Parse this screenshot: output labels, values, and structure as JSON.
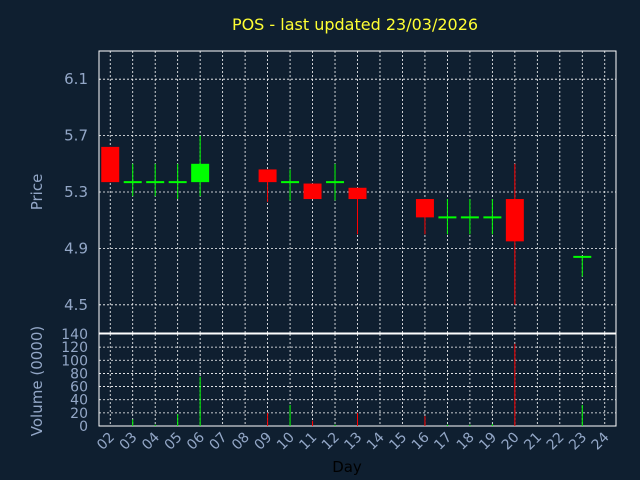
{
  "chart_data": {
    "type": "candlestick",
    "title": "POS - last updated 23/03/2026",
    "xlabel": "Day",
    "price_panel": {
      "ylabel": "Price",
      "ylim": [
        4.3,
        6.3
      ],
      "yticks": [
        "4.5",
        "4.9",
        "5.3",
        "5.7",
        "6.1"
      ],
      "grid": true
    },
    "volume_panel": {
      "ylabel": "Volume (0000)",
      "ylim": [
        0,
        140
      ],
      "yticks": [
        "0",
        "20",
        "40",
        "60",
        "80",
        "100",
        "120",
        "140"
      ],
      "grid": true
    },
    "x_tick_labels": [
      "02",
      "03",
      "04",
      "05",
      "06",
      "07",
      "08",
      "09",
      "10",
      "11",
      "12",
      "13",
      "14",
      "15",
      "16",
      "17",
      "18",
      "19",
      "20",
      "21",
      "22",
      "23",
      "24"
    ],
    "candles": [
      {
        "day": "02",
        "open": 5.62,
        "close": 5.37,
        "high": 5.62,
        "low": 5.37,
        "volume": 0
      },
      {
        "day": "03",
        "open": 5.37,
        "close": 5.37,
        "high": 5.5,
        "low": 5.27,
        "volume": 10
      },
      {
        "day": "04",
        "open": 5.37,
        "close": 5.37,
        "high": 5.5,
        "low": 5.27,
        "volume": 2
      },
      {
        "day": "05",
        "open": 5.37,
        "close": 5.37,
        "high": 5.5,
        "low": 5.25,
        "volume": 18
      },
      {
        "day": "06",
        "open": 5.37,
        "close": 5.5,
        "high": 5.7,
        "low": 5.27,
        "volume": 75
      },
      {
        "day": "09",
        "open": 5.46,
        "close": 5.37,
        "high": 5.46,
        "low": 5.23,
        "volume": 20
      },
      {
        "day": "10",
        "open": 5.37,
        "close": 5.37,
        "high": 5.46,
        "low": 5.24,
        "volume": 32
      },
      {
        "day": "11",
        "open": 5.36,
        "close": 5.25,
        "high": 5.36,
        "low": 5.25,
        "volume": 8
      },
      {
        "day": "12",
        "open": 5.37,
        "close": 5.37,
        "high": 5.5,
        "low": 5.24,
        "volume": 2
      },
      {
        "day": "13",
        "open": 5.33,
        "close": 5.25,
        "high": 5.33,
        "low": 5.0,
        "volume": 20
      },
      {
        "day": "16",
        "open": 5.25,
        "close": 5.12,
        "high": 5.25,
        "low": 5.0,
        "volume": 15
      },
      {
        "day": "17",
        "open": 5.12,
        "close": 5.12,
        "high": 5.25,
        "low": 5.0,
        "volume": 2
      },
      {
        "day": "18",
        "open": 5.12,
        "close": 5.12,
        "high": 5.25,
        "low": 5.0,
        "volume": 2
      },
      {
        "day": "19",
        "open": 5.12,
        "close": 5.12,
        "high": 5.25,
        "low": 5.0,
        "volume": 3
      },
      {
        "day": "20",
        "open": 5.25,
        "close": 4.95,
        "high": 5.5,
        "low": 4.5,
        "volume": 125
      },
      {
        "day": "23",
        "open": 4.84,
        "close": 4.84,
        "high": 4.84,
        "low": 4.7,
        "volume": 32
      }
    ],
    "colors": {
      "up": "#00ff00",
      "down": "#ff0000",
      "background": "#0f1f30",
      "title": "#ffff33",
      "axis_text": "#93a7c7",
      "grid": "#ffffff"
    }
  }
}
